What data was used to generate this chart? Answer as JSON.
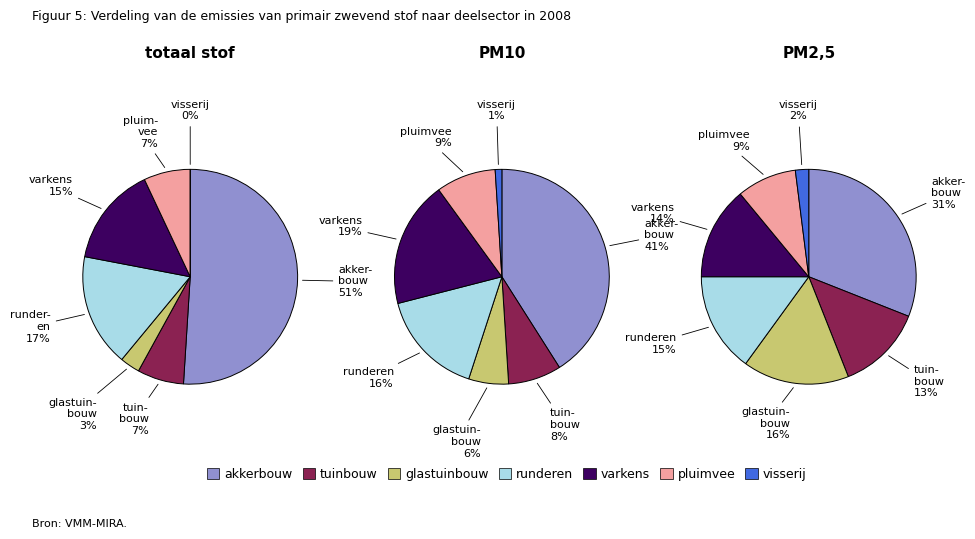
{
  "title": "Figuur 5: Verdeling van de emissies van primair zwevend stof naar deelsector in 2008",
  "subtitle_source": "Bron: VMM-MIRA.",
  "pie_titles": [
    "totaal stof",
    "PM10",
    "PM2,5"
  ],
  "categories": [
    "akkerbouw",
    "tuinbouw",
    "glastuinbouw",
    "runderen",
    "varkens",
    "pluimvee",
    "visserij"
  ],
  "colors": [
    "#9090D0",
    "#8B2252",
    "#C8C870",
    "#A8DCE8",
    "#3D0060",
    "#F4A0A0",
    "#4169E1"
  ],
  "pie1_values": [
    51,
    7,
    3,
    17,
    15,
    7,
    0
  ],
  "pie2_values": [
    41,
    8,
    6,
    16,
    19,
    9,
    1
  ],
  "pie3_values": [
    31,
    13,
    16,
    15,
    14,
    9,
    2
  ],
  "pie1_labels": [
    "akker-\nbouw\n51%",
    "tuin-\nbouw\n7%",
    "glastuin-\nbouw\n3%",
    "runder-\nen\n17%",
    "varkens\n15%",
    "pluim-\nvee\n7%",
    "visserij\n0%"
  ],
  "pie2_labels": [
    "akker-\nbouw\n41%",
    "tuin-\nbouw\n8%",
    "glastuin-\nbouw\n6%",
    "runderen\n16%",
    "varkens\n19%",
    "pluimvee\n9%",
    "visserij\n1%"
  ],
  "pie3_labels": [
    "akker-\nbouw\n31%",
    "tuin-\nbouw\n13%",
    "glastuin-\nbouw\n16%",
    "runderen\n15%",
    "varkens\n14%",
    "pluimvee\n9%",
    "visserij\n2%"
  ],
  "legend_labels": [
    "akkerbouw",
    "tuinbouw",
    "glastuinbouw",
    "runderen",
    "varkens",
    "pluimvee",
    "visserij"
  ],
  "startangles": [
    90,
    90,
    90
  ],
  "title_fontsize": 9,
  "pie_title_fontsize": 11,
  "label_fontsize": 8,
  "legend_fontsize": 9,
  "label_dist": 1.38
}
